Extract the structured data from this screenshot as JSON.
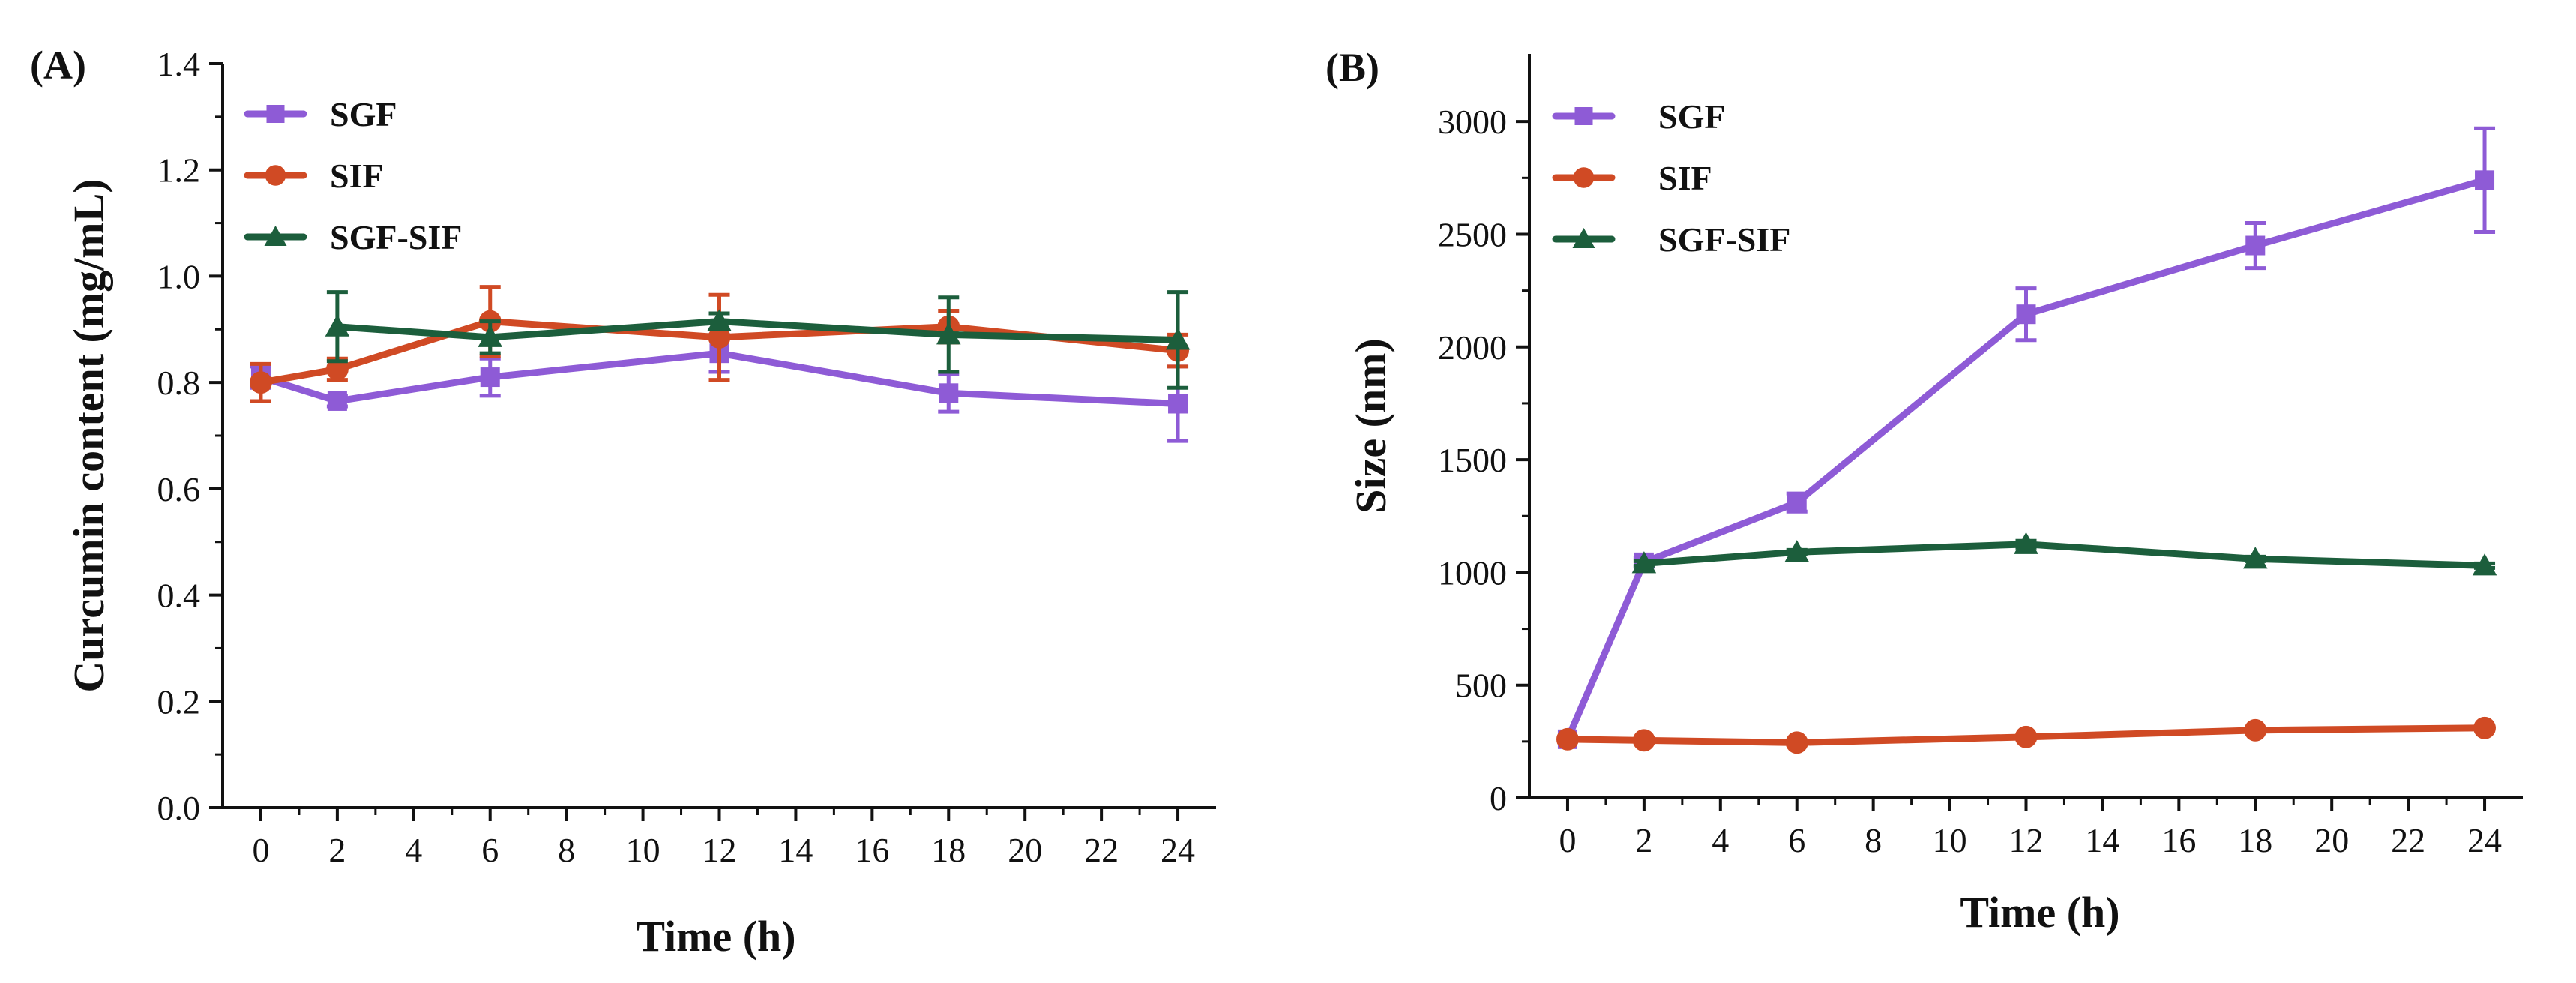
{
  "colors": {
    "SGF": "#8e5bd6",
    "SIF": "#d04a24",
    "SGF-SIF": "#1c5e3c"
  },
  "chart_data": [
    {
      "type": "line",
      "panel_label": "(A)",
      "xlabel": "Time (h)",
      "ylabel": "Curcumin content (mg/mL)",
      "xlim": [
        -1,
        25
      ],
      "ylim": [
        0,
        1.4
      ],
      "xticks": [
        0,
        2,
        4,
        6,
        8,
        10,
        12,
        14,
        16,
        18,
        20,
        22,
        24
      ],
      "yticks": [
        "0.0",
        "0.2",
        "0.4",
        "0.6",
        "0.8",
        "1.0",
        "1.2",
        "1.4"
      ],
      "legend": "top-left",
      "series": [
        {
          "name": "SGF",
          "marker": "square",
          "x": [
            0,
            2,
            6,
            12,
            18,
            24
          ],
          "y": [
            0.81,
            0.765,
            0.81,
            0.855,
            0.78,
            0.76
          ],
          "err": [
            0.02,
            0.01,
            0.035,
            0.035,
            0.035,
            0.07
          ]
        },
        {
          "name": "SIF",
          "marker": "circle",
          "x": [
            0,
            2,
            6,
            12,
            18,
            24
          ],
          "y": [
            0.8,
            0.825,
            0.915,
            0.885,
            0.905,
            0.86
          ],
          "err": [
            0.035,
            0.02,
            0.065,
            0.08,
            0.03,
            0.03
          ]
        },
        {
          "name": "SGF-SIF",
          "marker": "triangle",
          "x": [
            2,
            6,
            12,
            18,
            24
          ],
          "y": [
            0.905,
            0.885,
            0.915,
            0.89,
            0.88
          ],
          "err": [
            0.065,
            0.03,
            0.015,
            0.07,
            0.09
          ]
        }
      ]
    },
    {
      "type": "line",
      "panel_label": "(B)",
      "xlabel": "Time (h)",
      "ylabel": "Size (nm)",
      "xlim": [
        -1,
        25
      ],
      "ylim": [
        0,
        3000
      ],
      "yaxis_max": 3300,
      "xticks": [
        0,
        2,
        4,
        6,
        8,
        10,
        12,
        14,
        16,
        18,
        20,
        22,
        24
      ],
      "yticks": [
        "0",
        "500",
        "1000",
        "1500",
        "2000",
        "2500",
        "3000"
      ],
      "legend": "top-left",
      "series": [
        {
          "name": "SGF",
          "marker": "square",
          "x": [
            0,
            2,
            6,
            12,
            18,
            24
          ],
          "y": [
            260,
            1045,
            1310,
            2145,
            2450,
            2740
          ],
          "err": [
            0,
            20,
            40,
            115,
            100,
            230
          ]
        },
        {
          "name": "SIF",
          "marker": "circle",
          "x": [
            0,
            2,
            6,
            12,
            18,
            24
          ],
          "y": [
            260,
            255,
            245,
            270,
            300,
            310
          ],
          "err": [
            10,
            10,
            10,
            10,
            10,
            10
          ]
        },
        {
          "name": "SGF-SIF",
          "marker": "triangle",
          "x": [
            2,
            6,
            12,
            18,
            24
          ],
          "y": [
            1040,
            1090,
            1125,
            1060,
            1030
          ],
          "err": [
            10,
            10,
            15,
            10,
            10
          ]
        }
      ]
    }
  ]
}
